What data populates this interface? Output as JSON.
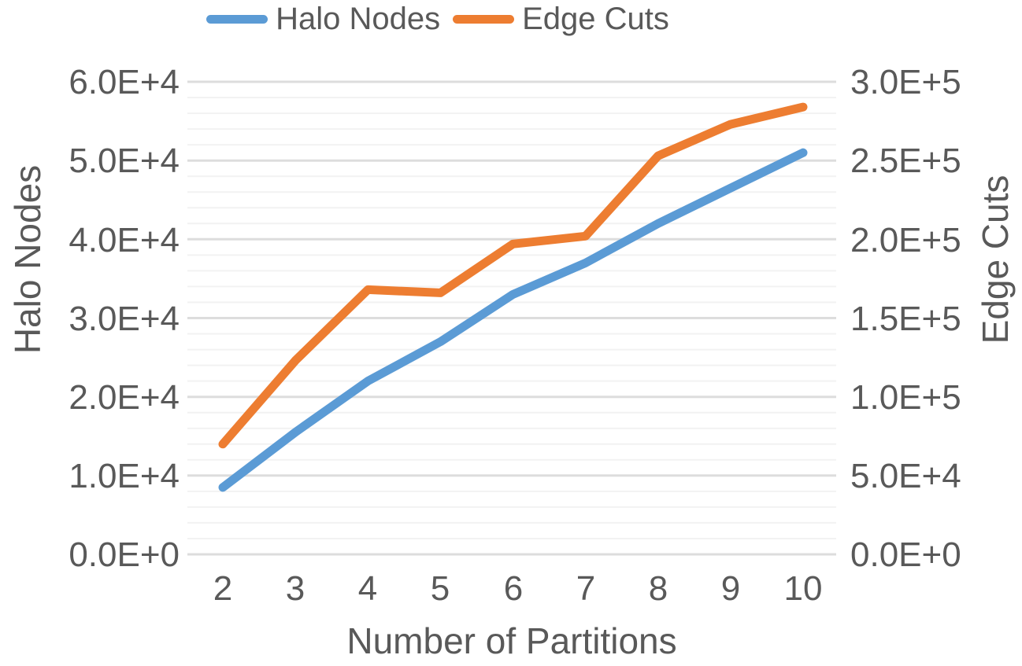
{
  "chart_data": {
    "type": "line",
    "title": "",
    "legend_position": "top",
    "grid": {
      "major_color": "#DDDDDD",
      "minor_color": "#F2F2F2",
      "major_on": true,
      "minor_on": true
    },
    "x_axis": {
      "title": "Number of Partitions",
      "ticks": [
        2,
        3,
        4,
        5,
        6,
        7,
        8,
        9,
        10
      ]
    },
    "left_axis": {
      "title": "Halo Nodes",
      "min": 0,
      "max": 60000,
      "major_step": 10000,
      "minor_step": 2000,
      "tick_labels_top_to_bottom": [
        "6.0E+4",
        "5.0E+4",
        "4.0E+4",
        "3.0E+4",
        "2.0E+4",
        "1.0E+4",
        "0.0E+0"
      ]
    },
    "right_axis": {
      "title": "Edge Cuts",
      "min": 0,
      "max": 300000,
      "major_step": 50000,
      "tick_labels_top_to_bottom": [
        "3.0E+5",
        "2.5E+5",
        "2.0E+5",
        "1.5E+5",
        "1.0E+5",
        "5.0E+4",
        "0.0E+0"
      ]
    },
    "series": [
      {
        "name": "Halo Nodes",
        "axis": "left",
        "color": "#5B9BD5",
        "values": [
          8500,
          15500,
          22000,
          27000,
          33000,
          37000,
          42000,
          46500,
          51000
        ]
      },
      {
        "name": "Edge Cuts",
        "axis": "right",
        "color": "#ED7D31",
        "values": [
          70000,
          123000,
          168000,
          166000,
          197000,
          202000,
          253000,
          273000,
          284000
        ]
      }
    ]
  },
  "colors": {
    "text": "#595959",
    "background": "#FFFFFF"
  }
}
